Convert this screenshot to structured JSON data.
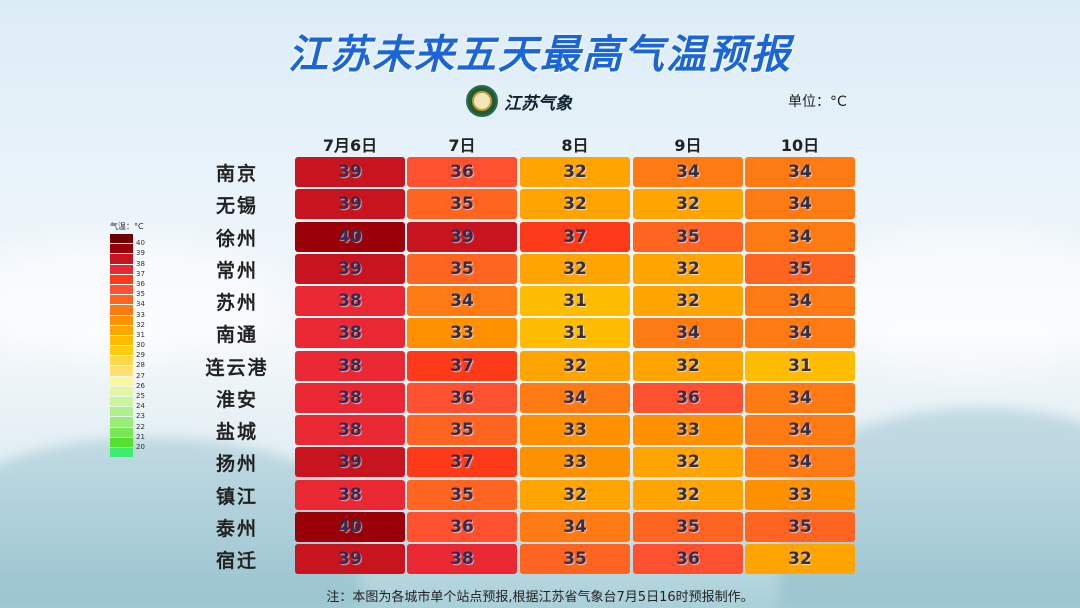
{
  "chart_data": {
    "type": "table",
    "title": "江苏未来五天最高气温预报",
    "unit_label": "单位：°C",
    "logo_text": "江苏气象",
    "columns": [
      "7月6日",
      "7日",
      "8日",
      "9日",
      "10日"
    ],
    "rows": [
      {
        "city": "南京",
        "values": [
          39,
          36,
          32,
          34,
          34
        ]
      },
      {
        "city": "无锡",
        "values": [
          39,
          35,
          32,
          32,
          34
        ]
      },
      {
        "city": "徐州",
        "values": [
          40,
          39,
          37,
          35,
          34
        ]
      },
      {
        "city": "常州",
        "values": [
          39,
          35,
          32,
          32,
          35
        ]
      },
      {
        "city": "苏州",
        "values": [
          38,
          34,
          31,
          32,
          34
        ]
      },
      {
        "city": "南通",
        "values": [
          38,
          33,
          31,
          34,
          34
        ]
      },
      {
        "city": "连云港",
        "values": [
          38,
          37,
          32,
          32,
          31
        ]
      },
      {
        "city": "淮安",
        "values": [
          38,
          36,
          34,
          36,
          34
        ]
      },
      {
        "city": "盐城",
        "values": [
          38,
          35,
          33,
          33,
          34
        ]
      },
      {
        "city": "扬州",
        "values": [
          39,
          37,
          33,
          32,
          34
        ]
      },
      {
        "city": "镇江",
        "values": [
          38,
          35,
          32,
          32,
          33
        ]
      },
      {
        "city": "泰州",
        "values": [
          40,
          36,
          34,
          35,
          35
        ]
      },
      {
        "city": "宿迁",
        "values": [
          39,
          38,
          35,
          36,
          32
        ]
      }
    ],
    "legend": {
      "title": "气温：°C",
      "labels": [
        40,
        39,
        38,
        37,
        36,
        35,
        34,
        33,
        32,
        31,
        30,
        29,
        28,
        27,
        26,
        25,
        24,
        23,
        22,
        21,
        20
      ]
    },
    "note": "注：本图为各城市单个站点预报,根据江苏省气象台7月5日16时预报制作。"
  },
  "colors": {
    "41": "#6e0000",
    "40": "#9a0008",
    "39": "#c8141e",
    "38": "#ea2834",
    "37": "#ff3a18",
    "36": "#ff5030",
    "35": "#ff6420",
    "34": "#ff7a12",
    "33": "#ff9000",
    "32": "#ffa400",
    "31": "#ffbc00",
    "30": "#ffcc10",
    "29": "#ffd84a",
    "28": "#ffe070",
    "27": "#fbf89a",
    "26": "#e2f7a0",
    "25": "#c8f59a",
    "24": "#b0f08c",
    "23": "#98ec78",
    "22": "#78e85a",
    "21": "#55e030",
    "20": "#40ec70"
  }
}
